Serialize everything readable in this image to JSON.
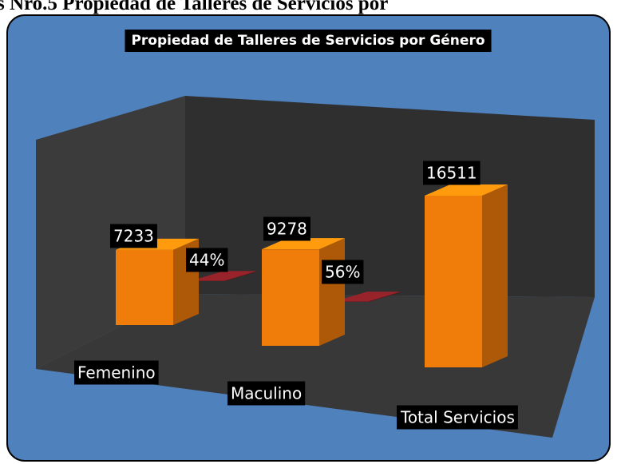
{
  "page_caption": "s Nro.5 Propiedad de Talleres de Servicios por",
  "chart_data": {
    "type": "bar",
    "title": "Propiedad de Talleres de Servicios por Género",
    "categories": [
      "Femenino",
      "Maculino",
      "Total Servicios"
    ],
    "series": [
      {
        "color": "#f07c0a",
        "values": [
          7233,
          9278,
          16511
        ]
      },
      {
        "color": "#7a1c22",
        "values": [
          44,
          56,
          null
        ],
        "value_labels": [
          "44%",
          "56%",
          null
        ]
      }
    ]
  }
}
